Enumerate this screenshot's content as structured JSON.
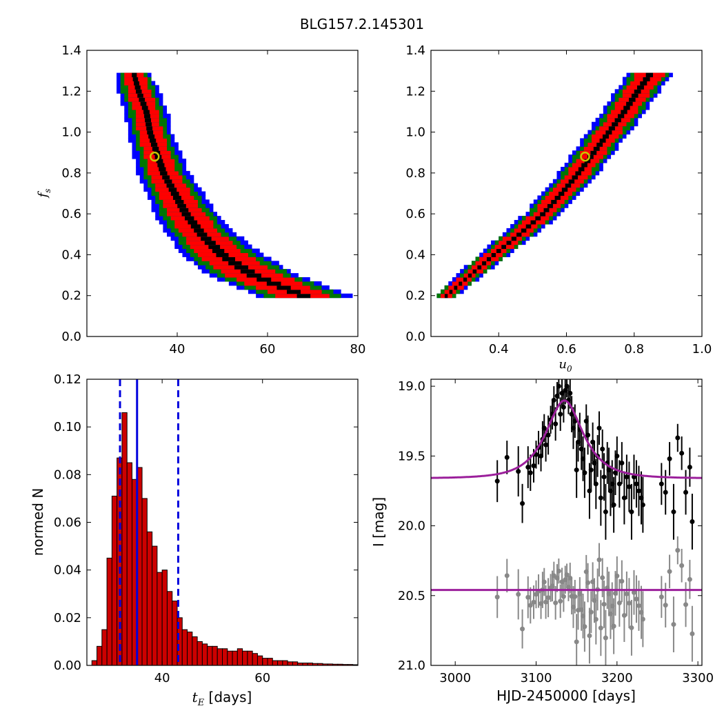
{
  "figure": {
    "title": "BLG157.2.145301"
  },
  "colors": {
    "sigma3": "#0000ff",
    "sigma2": "#007700",
    "sigma1": "#ff0000",
    "core": "#000000",
    "best_marker": "#c8c800",
    "hist_bar": "#cc0000",
    "model": "#9b1f9b",
    "residual": "#888888",
    "median_line": "#0000dd"
  },
  "chart_data": [
    {
      "id": "fs_vs_tE",
      "type": "heatmap",
      "title": "",
      "xlabel": "",
      "ylabel_base": "f",
      "ylabel_sub": "s",
      "xlim": [
        20,
        80
      ],
      "ylim": [
        0,
        1.4
      ],
      "xticks": [
        "40",
        "60",
        "80"
      ],
      "yticks": [
        "0.0",
        "0.2",
        "0.4",
        "0.6",
        "0.8",
        "1.0",
        "1.2",
        "1.4"
      ],
      "band": {
        "f": [
          1.28,
          1.2,
          1.1,
          1.0,
          0.9,
          0.8,
          0.7,
          0.6,
          0.5,
          0.4,
          0.3,
          0.2
        ],
        "x_center": [
          30.5,
          31.5,
          33.2,
          34.0,
          35.5,
          37.0,
          39.5,
          42.0,
          45.5,
          50.0,
          57.0,
          68.0
        ],
        "half_width_1sigma": [
          2.2,
          2.6,
          2.7,
          2.7,
          2.9,
          3.2,
          3.6,
          4.0,
          4.5,
          5.5,
          6.5,
          6.0
        ],
        "half_width_2sigma": [
          3.0,
          3.7,
          3.8,
          3.8,
          4.1,
          4.5,
          5.0,
          5.6,
          6.3,
          7.5,
          8.5,
          8.5
        ],
        "half_width_3sigma": [
          3.6,
          4.6,
          4.8,
          4.9,
          5.3,
          5.8,
          6.4,
          7.0,
          7.8,
          9.0,
          10.0,
          10.5
        ]
      },
      "best_fit": {
        "x": 35.0,
        "y": 0.88
      }
    },
    {
      "id": "fs_vs_u0",
      "type": "heatmap",
      "title": "",
      "xlabel_base": "u",
      "xlabel_sub": "0",
      "ylabel": "",
      "xlim": [
        0.2,
        1.0
      ],
      "ylim": [
        0,
        1.4
      ],
      "xticks": [
        "0.4",
        "0.6",
        "0.8",
        "1.0"
      ],
      "yticks": [
        "0.0",
        "0.2",
        "0.4",
        "0.6",
        "0.8",
        "1.0",
        "1.2",
        "1.4"
      ],
      "band": {
        "f": [
          0.2,
          0.3,
          0.4,
          0.5,
          0.6,
          0.7,
          0.8,
          0.9,
          1.0,
          1.1,
          1.2,
          1.28
        ],
        "x_center": [
          0.245,
          0.315,
          0.385,
          0.46,
          0.53,
          0.585,
          0.635,
          0.68,
          0.725,
          0.77,
          0.81,
          0.845
        ],
        "half_width_1sigma": [
          0.018,
          0.022,
          0.026,
          0.03,
          0.032,
          0.034,
          0.035,
          0.036,
          0.037,
          0.038,
          0.04,
          0.042
        ],
        "half_width_2sigma": [
          0.026,
          0.031,
          0.036,
          0.041,
          0.044,
          0.047,
          0.048,
          0.05,
          0.051,
          0.052,
          0.054,
          0.056
        ],
        "half_width_3sigma": [
          0.032,
          0.038,
          0.044,
          0.05,
          0.054,
          0.057,
          0.059,
          0.061,
          0.063,
          0.064,
          0.066,
          0.068
        ]
      },
      "best_fit": {
        "x": 0.655,
        "y": 0.88
      }
    },
    {
      "id": "tE_histogram",
      "type": "bar",
      "title": "",
      "xlabel_base": "t",
      "xlabel_sub": "E",
      "xlabel_units": " [days]",
      "ylabel": "normed N",
      "xlim": [
        25,
        79
      ],
      "ylim": [
        0,
        0.12
      ],
      "xticks": [
        "40",
        "60"
      ],
      "yticks": [
        "0.00",
        "0.02",
        "0.04",
        "0.06",
        "0.08",
        "0.10",
        "0.12"
      ],
      "bin_start": 26.0,
      "bin_width": 1.0,
      "values": [
        0.002,
        0.008,
        0.015,
        0.045,
        0.071,
        0.087,
        0.106,
        0.085,
        0.078,
        0.083,
        0.07,
        0.056,
        0.05,
        0.039,
        0.04,
        0.031,
        0.027,
        0.02,
        0.015,
        0.014,
        0.012,
        0.01,
        0.009,
        0.008,
        0.008,
        0.007,
        0.007,
        0.006,
        0.006,
        0.007,
        0.006,
        0.006,
        0.005,
        0.004,
        0.003,
        0.003,
        0.002,
        0.002,
        0.002,
        0.0015,
        0.0015,
        0.001,
        0.001,
        0.001,
        0.0008,
        0.0008,
        0.0006,
        0.0006,
        0.0005,
        0.0005,
        0.0004,
        0.0004,
        0.0003
      ],
      "median": 35.0,
      "lower": 31.6,
      "upper": 43.2
    },
    {
      "id": "light_curve",
      "type": "scatter",
      "title": "",
      "xlabel": "HJD-2450000 [days]",
      "ylabel": "I [mag]",
      "xlim": [
        2970,
        3305
      ],
      "ylim": [
        21.0,
        18.95
      ],
      "xticks": [
        "3000",
        "3100",
        "3200",
        "3300"
      ],
      "yticks": [
        "19.0",
        "19.5",
        "20.0",
        "20.5",
        "21.0"
      ],
      "model": {
        "t0": 3135,
        "tE": 35.0,
        "u0": 0.655,
        "fs": 0.88,
        "baseline_mag": 19.66,
        "residual_baseline": 20.46
      },
      "observations": {
        "t": [
          3052,
          3064,
          3078,
          3083,
          3090,
          3093,
          3097,
          3100,
          3103,
          3106,
          3108,
          3110,
          3112,
          3115,
          3118,
          3120,
          3122,
          3124,
          3126,
          3128,
          3130,
          3132,
          3134,
          3136,
          3138,
          3140,
          3142,
          3144,
          3146,
          3148,
          3150,
          3152,
          3154,
          3156,
          3158,
          3160,
          3162,
          3164,
          3166,
          3168,
          3170,
          3172,
          3174,
          3176,
          3178,
          3180,
          3182,
          3184,
          3186,
          3188,
          3190,
          3192,
          3194,
          3196,
          3198,
          3200,
          3203,
          3206,
          3209,
          3212,
          3215,
          3218,
          3221,
          3224,
          3227,
          3230,
          3232,
          3255,
          3260,
          3265,
          3270,
          3275,
          3280,
          3285,
          3290,
          3293
        ],
        "mag": [
          19.68,
          19.51,
          19.61,
          19.84,
          19.58,
          19.62,
          19.57,
          19.49,
          19.44,
          19.5,
          19.38,
          19.3,
          19.42,
          19.35,
          19.24,
          19.2,
          19.1,
          19.27,
          19.07,
          19.0,
          19.2,
          19.05,
          19.15,
          19.03,
          19.0,
          19.1,
          19.05,
          19.2,
          19.3,
          19.25,
          19.6,
          19.4,
          19.31,
          19.45,
          19.52,
          19.62,
          19.25,
          19.35,
          19.75,
          19.6,
          19.4,
          19.55,
          19.7,
          19.5,
          19.3,
          19.8,
          19.45,
          19.65,
          19.9,
          19.55,
          19.6,
          19.75,
          19.7,
          19.85,
          19.62,
          19.5,
          19.7,
          19.55,
          19.8,
          19.65,
          19.72,
          19.9,
          19.65,
          19.7,
          19.75,
          19.8,
          19.85,
          19.7,
          19.76,
          19.52,
          19.9,
          19.37,
          19.48,
          19.76,
          19.58,
          19.97
        ],
        "err": [
          0.15,
          0.12,
          0.18,
          0.14,
          0.15,
          0.13,
          0.12,
          0.1,
          0.12,
          0.11,
          0.13,
          0.1,
          0.12,
          0.14,
          0.1,
          0.11,
          0.1,
          0.12,
          0.1,
          0.09,
          0.12,
          0.1,
          0.11,
          0.1,
          0.08,
          0.1,
          0.11,
          0.13,
          0.15,
          0.12,
          0.2,
          0.14,
          0.12,
          0.15,
          0.16,
          0.18,
          0.12,
          0.14,
          0.2,
          0.15,
          0.14,
          0.16,
          0.18,
          0.15,
          0.12,
          0.2,
          0.14,
          0.17,
          0.2,
          0.15,
          0.16,
          0.18,
          0.17,
          0.2,
          0.16,
          0.14,
          0.17,
          0.15,
          0.19,
          0.16,
          0.18,
          0.2,
          0.16,
          0.17,
          0.18,
          0.19,
          0.2,
          0.15,
          0.16,
          0.12,
          0.2,
          0.1,
          0.12,
          0.16,
          0.14,
          0.2
        ]
      }
    }
  ]
}
